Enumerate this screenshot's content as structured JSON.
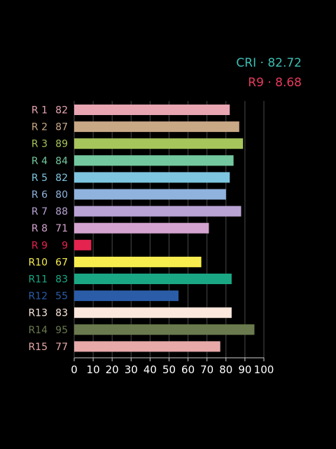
{
  "summary": {
    "cri_text": "CRI · 82.72",
    "r9_text": "R9 · 8.68",
    "cri_color": "#3bbfb3",
    "r9_color": "#e83a5c"
  },
  "chart_data": {
    "type": "bar",
    "orientation": "horizontal",
    "categories": [
      "R 1",
      "R 2",
      "R 3",
      "R 4",
      "R 5",
      "R 6",
      "R 7",
      "R 8",
      "R 9",
      "R10",
      "R11",
      "R12",
      "R13",
      "R14",
      "R15"
    ],
    "values": [
      82,
      87,
      89,
      84,
      82,
      80,
      88,
      71,
      9,
      67,
      83,
      55,
      83,
      95,
      77
    ],
    "value_labels": [
      "82",
      "87",
      "89",
      "84",
      "82",
      "80",
      "88",
      "71",
      "9",
      "67",
      "83",
      "55",
      "83",
      "95",
      "77"
    ],
    "colors": [
      "#e8a5b2",
      "#c9a886",
      "#a6c55b",
      "#74c89f",
      "#7ec6e0",
      "#8fb3dd",
      "#b9a3d5",
      "#d4a3cf",
      "#e5234f",
      "#f7ed4f",
      "#1aa884",
      "#2a5ca8",
      "#fbe7dc",
      "#6a7a4e",
      "#e7aaa9"
    ],
    "label_colors": [
      "#e8a5b2",
      "#c9a886",
      "#a6c55b",
      "#74c89f",
      "#7ec6e0",
      "#8fb3dd",
      "#b9a3d5",
      "#d4a3cf",
      "#e5234f",
      "#f7ed4f",
      "#1aa884",
      "#2a5ca8",
      "#fbe7dc",
      "#6a7a4e",
      "#e7aaa9"
    ],
    "x_ticks": [
      "0",
      "10",
      "20",
      "30",
      "40",
      "50",
      "60",
      "70",
      "80",
      "90",
      "100"
    ],
    "xlim": [
      0,
      100
    ],
    "grid": true,
    "title": "",
    "xlabel": "",
    "ylabel": ""
  }
}
